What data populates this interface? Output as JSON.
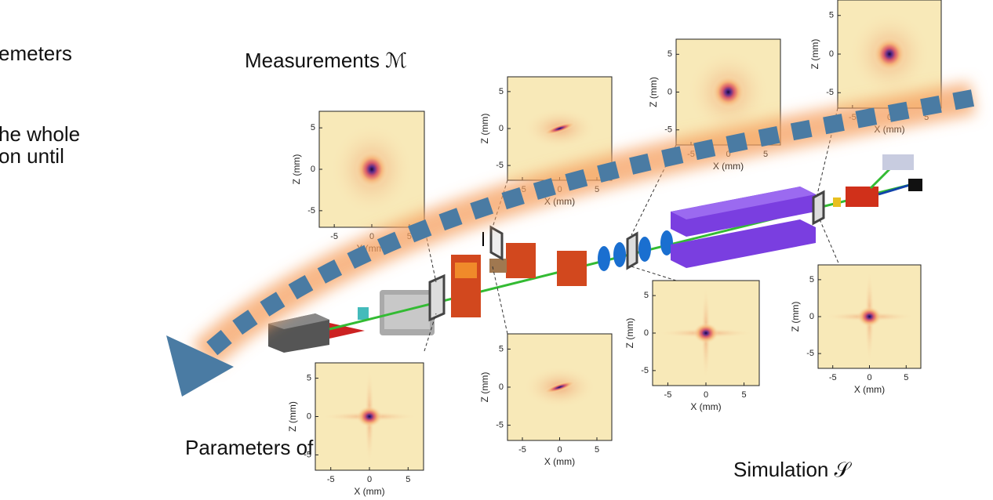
{
  "intro": [
    "emeters",
    "he whole",
    "on until"
  ],
  "measurements_label": "Measurements ℳ",
  "parameters_label": "Parameters of LPA",
  "simulation_label": "Simulation 𝒮",
  "plots": [
    {
      "xticks": [
        -5,
        0,
        5
      ],
      "yticks": [
        5,
        0,
        -5
      ],
      "xlabel": "X (mm)",
      "ylabel": "Z (mm)"
    },
    {
      "xticks": [
        -5,
        0,
        5
      ],
      "yticks": [
        5,
        0,
        -5
      ],
      "xlabel": "X (mm)",
      "ylabel": "Z (mm)"
    },
    {
      "xticks": [
        -5,
        0,
        5
      ],
      "yticks": [
        5,
        0,
        -5
      ],
      "xlabel": "X (mm)",
      "ylabel": "Z (mm)"
    },
    {
      "xticks": [
        -5,
        0,
        5
      ],
      "yticks": [
        5,
        0,
        -5
      ],
      "xlabel": "X (mm)",
      "ylabel": "Z (mm)"
    },
    {
      "xticks": [
        -5,
        0,
        5
      ],
      "yticks": [
        5,
        0,
        -5
      ],
      "xlabel": "X (mm)",
      "ylabel": "Z (mm)"
    },
    {
      "xticks": [
        -5,
        0,
        5
      ],
      "yticks": [
        5,
        0,
        -5
      ],
      "xlabel": "X (mm)",
      "ylabel": "Z (mm)"
    },
    {
      "xticks": [
        -5,
        0,
        5
      ],
      "yticks": [
        5,
        0,
        -5
      ],
      "xlabel": "X (mm)",
      "ylabel": "Z (mm)"
    },
    {
      "xticks": [
        -5,
        0,
        5
      ],
      "yticks": [
        5,
        0,
        -5
      ],
      "xlabel": "X (mm)",
      "ylabel": "Z (mm)"
    }
  ]
}
